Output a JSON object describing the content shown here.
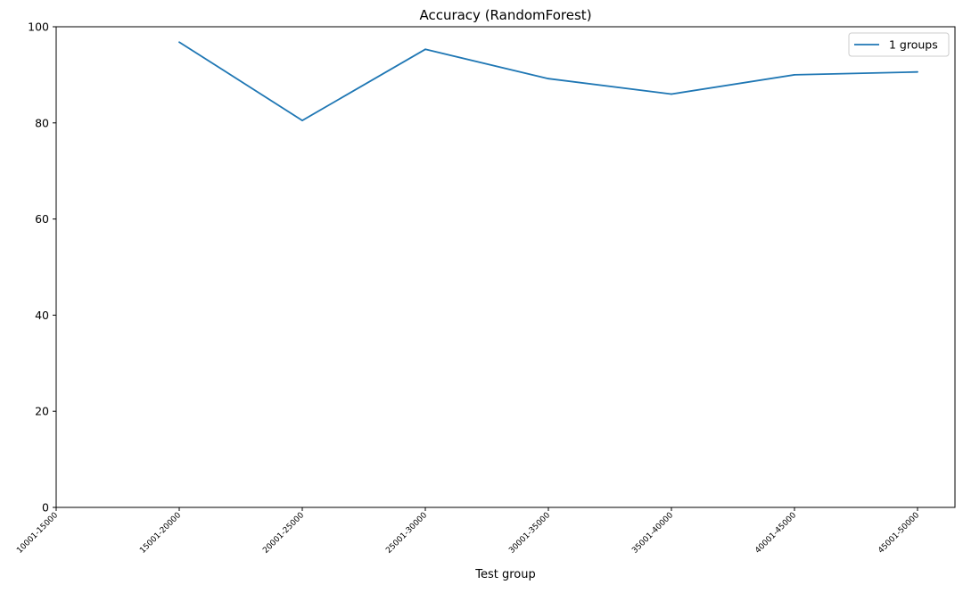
{
  "chart_data": {
    "type": "line",
    "title": "Accuracy (RandomForest)",
    "xlabel": "Test group",
    "ylabel": "",
    "categories": [
      "10001-15000",
      "15001-20000",
      "20001-25000",
      "25001-30000",
      "30001-35000",
      "35001-40000",
      "40001-45000",
      "45001-50000"
    ],
    "ylim": [
      0,
      100
    ],
    "yticks": [
      0,
      20,
      40,
      60,
      80,
      100
    ],
    "grid": false,
    "legend_position": "top-right",
    "series": [
      {
        "name": "1 groups",
        "color": "#1f77b4",
        "values": [
          null,
          96.8,
          80.5,
          95.3,
          89.2,
          86.0,
          90.0,
          90.6
        ]
      }
    ]
  }
}
